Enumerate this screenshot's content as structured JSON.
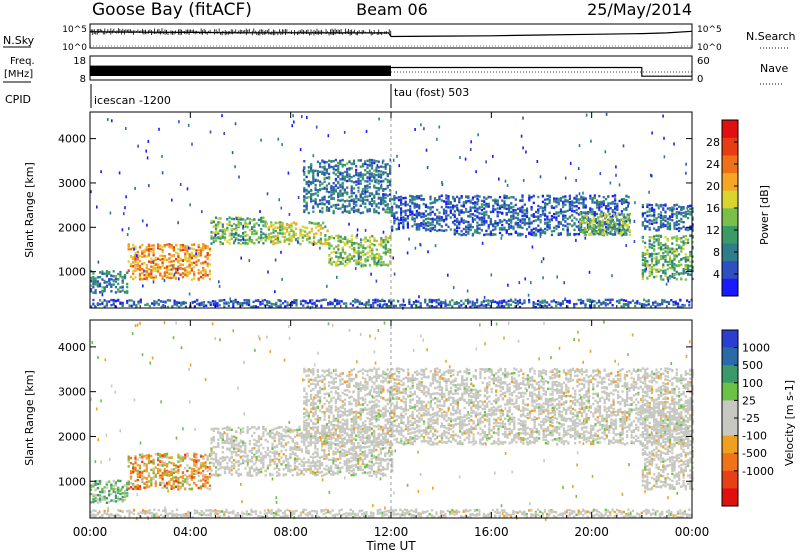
{
  "header": {
    "station": "Goose Bay (fitACF)",
    "beam": "Beam 06",
    "date": "25/May/2014"
  },
  "left_labels": {
    "nsky": "N.Sky",
    "freq": "Freq.",
    "freq_unit": "[MHz]",
    "cpid": "CPID"
  },
  "right_labels": {
    "nsearch": "N.Search",
    "nave": "Nave"
  },
  "cpid_segments": [
    {
      "label": "icescan -1200",
      "start_hour": 0,
      "end_hour": 12
    },
    {
      "label": "tau (fost) 503",
      "start_hour": 12,
      "end_hour": 24
    }
  ],
  "chart_data": [
    {
      "type": "line",
      "name": "noise",
      "series": [
        {
          "name": "N.Sky",
          "axis": "left",
          "x": [
            0,
            1,
            2,
            4,
            6,
            8,
            10,
            11.9,
            12,
            14,
            16,
            18,
            20,
            22,
            23,
            24
          ],
          "values": [
            2500,
            2200,
            2000,
            1800,
            1500,
            1500,
            1400,
            1400,
            250,
            300,
            350,
            500,
            700,
            1000,
            1400,
            3000
          ]
        },
        {
          "name": "N.Search",
          "axis": "right",
          "style": "dotted"
        }
      ],
      "yticks_left": [
        "10^5",
        "10^0"
      ],
      "yticks_right": [
        "10^5",
        "10^0"
      ]
    },
    {
      "type": "line",
      "name": "frequency-nave",
      "series": [
        {
          "name": "Freq.",
          "axis": "left",
          "x": [
            0,
            12,
            12,
            22,
            22,
            24
          ],
          "values": [
            14,
            14,
            13.2,
            13.2,
            9.6,
            9.6
          ],
          "fill_region": [
            0,
            12
          ]
        },
        {
          "name": "Nave",
          "axis": "right",
          "style": "dotted",
          "x": [
            12,
            24
          ],
          "values": [
            20,
            20
          ]
        }
      ],
      "yticks_left": [
        "18",
        "8"
      ],
      "yticks_right": [
        "60",
        "0"
      ]
    },
    {
      "type": "heatmap",
      "name": "power",
      "x": [
        0,
        24
      ],
      "ylabel": "Slant Range [km]",
      "ylim": [
        180,
        4600
      ],
      "yticks": [
        1000,
        2000,
        3000,
        4000
      ],
      "colorbar": {
        "label": "Power [dB]",
        "ticks": [
          4,
          8,
          12,
          16,
          20,
          24,
          28
        ],
        "range": [
          0,
          32
        ],
        "colors": [
          "#1a1aff",
          "#2e4fc2",
          "#2e7d8a",
          "#3c9a66",
          "#7abf4a",
          "#d9d52e",
          "#f5a623",
          "#f07018",
          "#e83c14",
          "#e01010"
        ]
      },
      "regions": [
        {
          "name": "near-range band",
          "hours": [
            0,
            24
          ],
          "range_km": [
            180,
            350
          ],
          "level": 6
        },
        {
          "name": "early E-region blob",
          "hours": [
            1.5,
            4.8
          ],
          "range_km": [
            800,
            1600
          ],
          "level": 22
        },
        {
          "name": "early drift",
          "hours": [
            0,
            1.5
          ],
          "range_km": [
            500,
            1000
          ],
          "level": 9
        },
        {
          "name": "arc rising",
          "hours": [
            4.8,
            7
          ],
          "range_km": [
            1600,
            2200
          ],
          "level": 13
        },
        {
          "name": "arc middle",
          "hours": [
            7,
            9.5
          ],
          "range_km": [
            1600,
            2100
          ],
          "level": 16
        },
        {
          "name": "arc descending",
          "hours": [
            9.5,
            12
          ],
          "range_km": [
            1100,
            1800
          ],
          "level": 15
        },
        {
          "name": "upper patch",
          "hours": [
            8.5,
            12
          ],
          "range_km": [
            2300,
            3500
          ],
          "level": 8
        },
        {
          "name": "post-noon band",
          "hours": [
            12,
            14.5
          ],
          "range_km": [
            1900,
            2700
          ],
          "level": 6
        },
        {
          "name": "afternoon ramp",
          "hours": [
            14.5,
            21.5
          ],
          "range_km": [
            1800,
            2700
          ],
          "level": 6
        },
        {
          "name": "late patch",
          "hours": [
            19.5,
            21.5
          ],
          "range_km": [
            1800,
            2300
          ],
          "level": 14
        },
        {
          "name": "end block",
          "hours": [
            22,
            24
          ],
          "range_km": [
            800,
            1800
          ],
          "level": 12
        },
        {
          "name": "end top",
          "hours": [
            22,
            24
          ],
          "range_km": [
            1900,
            2500
          ],
          "level": 7
        }
      ]
    },
    {
      "type": "heatmap",
      "name": "velocity",
      "x": [
        0,
        24
      ],
      "xlabel": "Time UT",
      "xticks": [
        "00:00",
        "04:00",
        "08:00",
        "12:00",
        "16:00",
        "20:00",
        "00:00"
      ],
      "ylabel": "Slant Range [km]",
      "ylim": [
        180,
        4600
      ],
      "yticks": [
        1000,
        2000,
        3000,
        4000
      ],
      "colorbar": {
        "label": "Velocity [m s-1]",
        "ticks": [
          "1000",
          "500",
          "100",
          "25",
          "-25",
          "-100",
          "-500",
          "-1000"
        ],
        "colors": [
          "#2a3fcf",
          "#2b6aa8",
          "#3c9a6a",
          "#6cc244",
          "#c8c8c2",
          "#c8c8c2",
          "#f0a020",
          "#f07318",
          "#e84016",
          "#e01010"
        ]
      },
      "regions": [
        {
          "name": "near-range band",
          "hours": [
            0,
            24
          ],
          "range_km": [
            180,
            350
          ],
          "level": "gray"
        },
        {
          "name": "early E-region blob",
          "hours": [
            1.5,
            4.8
          ],
          "range_km": [
            800,
            1600
          ],
          "level": "orange"
        },
        {
          "name": "early drift",
          "hours": [
            0,
            1.5
          ],
          "range_km": [
            500,
            1000
          ],
          "level": "green"
        },
        {
          "name": "arc",
          "hours": [
            4.8,
            12
          ],
          "range_km": [
            1100,
            2200
          ],
          "level": "gray"
        },
        {
          "name": "upper patch",
          "hours": [
            8.5,
            24
          ],
          "range_km": [
            1800,
            3500
          ],
          "level": "gray"
        },
        {
          "name": "end block",
          "hours": [
            22,
            24
          ],
          "range_km": [
            800,
            2800
          ],
          "level": "gray"
        }
      ]
    }
  ]
}
